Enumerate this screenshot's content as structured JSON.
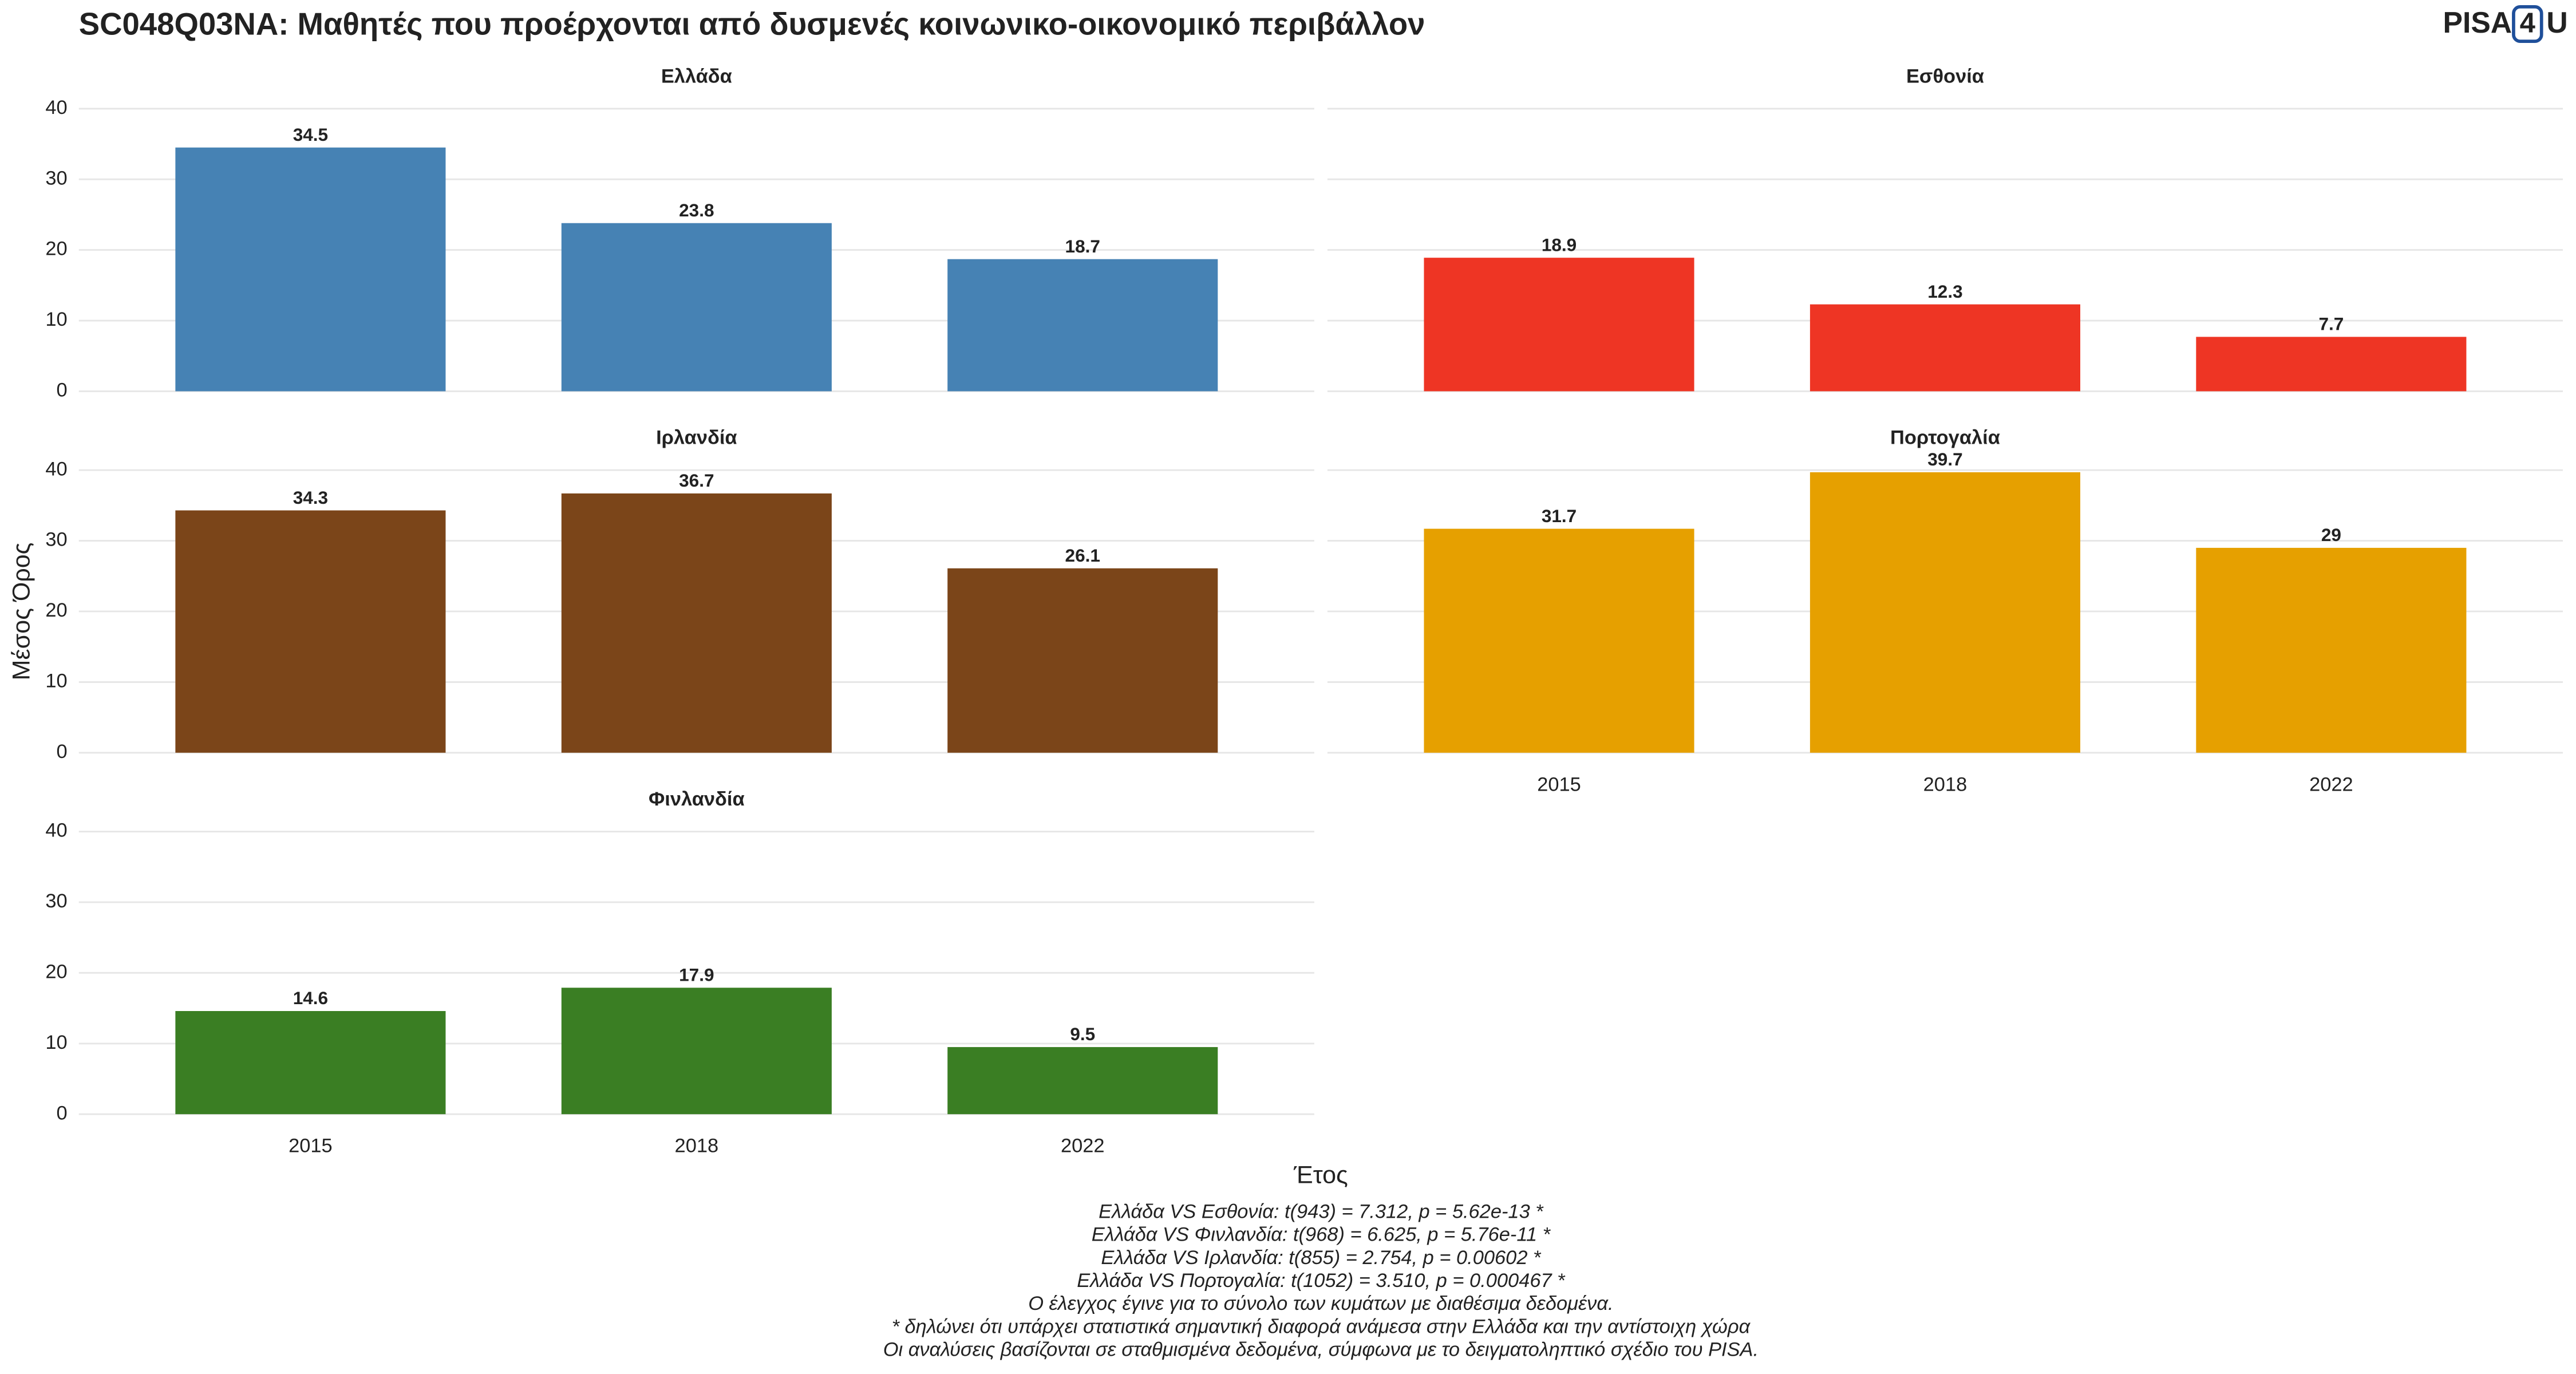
{
  "title": "SC048Q03NA: Μαθητές που προέρχονται από δυσμενές κοινωνικο-οικονομικό περιβάλλον",
  "logo": [
    "PISA",
    "4",
    "U"
  ],
  "y_label": "Μέσος Όρος",
  "x_label": "Έτος",
  "notes": [
    "Ελλάδα VS Εσθονία: t(943) = 7.312, p = 5.62e-13 *",
    "Ελλάδα VS Φινλανδία: t(968) = 6.625, p = 5.76e-11 *",
    "Ελλάδα VS Ιρλανδία: t(855) = 2.754, p = 0.00602 *",
    "Ελλάδα VS Πορτογαλία: t(1052) = 3.510, p = 0.000467 *",
    "Ο έλεγχος έγινε για το σύνολο των κυμάτων με διαθέσιμα δεδομένα.",
    "* δηλώνει ότι υπάρχει στατιστικά σημαντική διαφορά ανάμεσα στην Ελλάδα και την αντίστοιχη χώρα",
    "Οι αναλύσεις βασίζονται σε σταθμισμένα δεδομένα, σύμφωνα με το δειγματοληπτικό σχέδιο του PISA."
  ],
  "chart_data": [
    {
      "type": "bar",
      "title": "Ελλάδα",
      "categories": [
        null,
        null,
        null
      ],
      "values": [
        34.5,
        23.8,
        18.7
      ],
      "color": "#4682b4",
      "ylim": [
        0,
        40
      ],
      "yticks": [
        0,
        10,
        20,
        30,
        40
      ],
      "grid": true
    },
    {
      "type": "bar",
      "title": "Εσθονία",
      "categories": [
        null,
        null,
        null
      ],
      "values": [
        18.9,
        12.3,
        7.7
      ],
      "color": "#ee3524",
      "ylim": [
        0,
        40
      ],
      "yticks": [
        0,
        10,
        20,
        30,
        40
      ],
      "grid": true
    },
    {
      "type": "bar",
      "title": "Ιρλανδία",
      "categories": [
        null,
        null,
        null
      ],
      "values": [
        34.3,
        36.7,
        26.1
      ],
      "color": "#7b4519",
      "ylim": [
        0,
        40
      ],
      "yticks": [
        0,
        10,
        20,
        30,
        40
      ],
      "grid": true
    },
    {
      "type": "bar",
      "title": "Πορτογαλία",
      "categories": [
        "2015",
        "2018",
        "2022"
      ],
      "values": [
        31.7,
        39.7,
        29
      ],
      "color": "#e6a000",
      "ylim": [
        0,
        40
      ],
      "yticks": [
        0,
        10,
        20,
        30,
        40
      ],
      "grid": true
    },
    {
      "type": "bar",
      "title": "Φινλανδία",
      "categories": [
        "2015",
        "2018",
        "2022"
      ],
      "values": [
        14.6,
        17.9,
        9.5
      ],
      "color": "#3a7e23",
      "ylim": [
        0,
        40
      ],
      "yticks": [
        0,
        10,
        20,
        30,
        40
      ],
      "grid": true
    }
  ]
}
